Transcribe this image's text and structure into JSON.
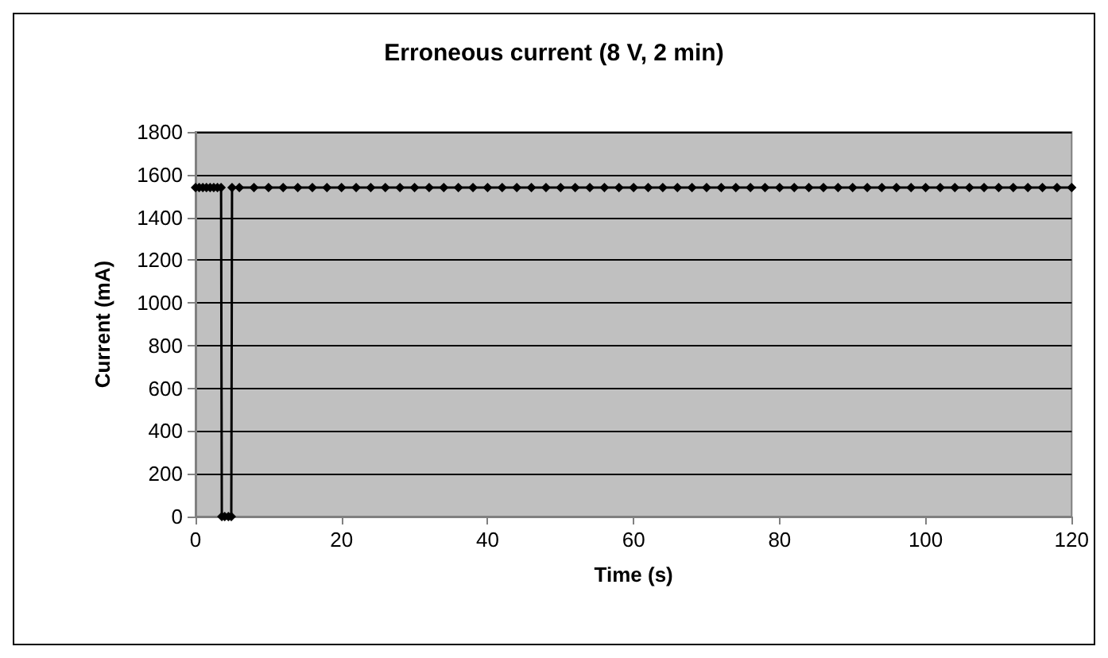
{
  "chart_data": {
    "type": "line",
    "title": "Erroneous current (8 V, 2 min)",
    "xlabel": "Time (s)",
    "ylabel": "Current (mA)",
    "x": [
      0,
      0.5,
      1,
      1.5,
      2,
      2.5,
      3,
      3.5,
      3.6,
      4,
      4.5,
      4.9,
      5,
      6,
      8,
      10,
      12,
      14,
      16,
      18,
      20,
      22,
      24,
      26,
      28,
      30,
      32,
      34,
      36,
      38,
      40,
      42,
      44,
      46,
      48,
      50,
      52,
      54,
      56,
      58,
      60,
      62,
      64,
      66,
      68,
      70,
      72,
      74,
      76,
      78,
      80,
      82,
      84,
      86,
      88,
      90,
      92,
      94,
      96,
      98,
      100,
      102,
      104,
      106,
      108,
      110,
      112,
      114,
      116,
      118,
      120
    ],
    "series": [
      {
        "color": "#000000",
        "values": [
          1540,
          1540,
          1540,
          1540,
          1540,
          1540,
          1540,
          1540,
          0,
          0,
          0,
          0,
          1540,
          1540,
          1540,
          1540,
          1540,
          1540,
          1540,
          1540,
          1540,
          1540,
          1540,
          1540,
          1540,
          1540,
          1540,
          1540,
          1540,
          1540,
          1540,
          1540,
          1540,
          1540,
          1540,
          1540,
          1540,
          1540,
          1540,
          1540,
          1540,
          1540,
          1540,
          1540,
          1540,
          1540,
          1540,
          1540,
          1540,
          1540,
          1540,
          1540,
          1540,
          1540,
          1540,
          1540,
          1540,
          1540,
          1540,
          1540,
          1540,
          1540,
          1540,
          1540,
          1540,
          1540,
          1540,
          1540,
          1540,
          1540,
          1540
        ]
      }
    ],
    "xlim": [
      0,
      120
    ],
    "xticks": [
      0,
      20,
      40,
      60,
      80,
      100,
      120
    ],
    "ylim": [
      0,
      1800
    ],
    "yticks": [
      0,
      200,
      400,
      600,
      800,
      1000,
      1200,
      1400,
      1600,
      1800
    ],
    "grid": "y",
    "marker": "diamond",
    "line_style": "solid"
  }
}
